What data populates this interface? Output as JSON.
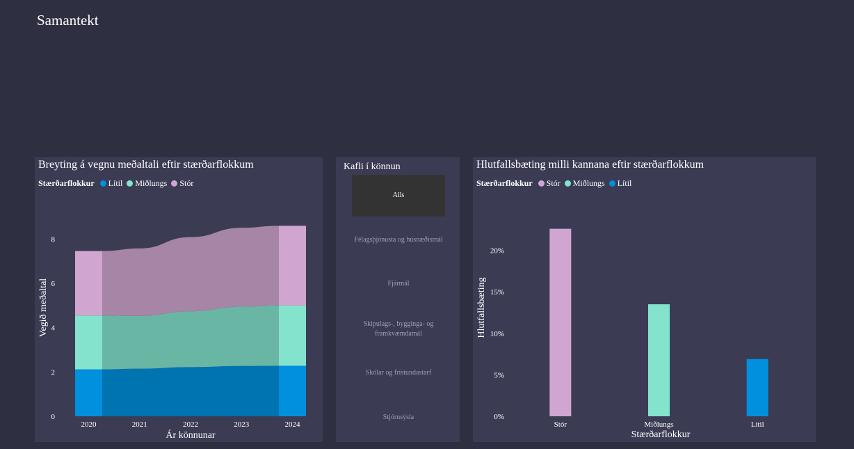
{
  "page": {
    "title": "Samantekt"
  },
  "left_chart": {
    "title": "Breyting á vegnu meðaltali eftir stærðarflokkum",
    "legend_title": "Stærðarflokkur",
    "legend": [
      {
        "label": "Lítil",
        "color": "#0090dd"
      },
      {
        "label": "Miðlungs",
        "color": "#84e3cd"
      },
      {
        "label": "Stór",
        "color": "#d0a6d0"
      }
    ]
  },
  "slicer": {
    "title": "Kafli í könnun",
    "items": [
      {
        "label": "Alls",
        "selected": true
      },
      {
        "label": "Félagsþjónusta og húsnæðismál",
        "selected": false
      },
      {
        "label": "Fjármál",
        "selected": false
      },
      {
        "label": "Skipulags-, bygginga- og framkvæmdamál",
        "selected": false
      },
      {
        "label": "Skólar og frístundastarf",
        "selected": false
      },
      {
        "label": "Stjórnsýsla",
        "selected": false
      }
    ]
  },
  "right_chart": {
    "title": "Hlutfallsbæting milli kannana eftir stærðarflokkum",
    "legend_title": "Stærðarflokkur",
    "legend": [
      {
        "label": "Stór",
        "color": "#d0a6d0"
      },
      {
        "label": "Miðlungs",
        "color": "#84e3cd"
      },
      {
        "label": "Lítil",
        "color": "#0090dd"
      }
    ]
  },
  "chart_data": [
    {
      "type": "area",
      "title": "Breyting á vegnu meðaltali eftir stærðarflokkum",
      "xlabel": "Ár könnunar",
      "ylabel": "Vegið meðaltal",
      "x": [
        "2020",
        "2021",
        "2022",
        "2023",
        "2024"
      ],
      "ylim": [
        0,
        8.8
      ],
      "yticks": [
        "0",
        "2",
        "4",
        "6",
        "8"
      ],
      "stacked": true,
      "series": [
        {
          "name": "Lítil",
          "color": "#0090dd",
          "values": [
            2.12,
            2.15,
            2.22,
            2.27,
            2.28
          ]
        },
        {
          "name": "Miðlungs",
          "color": "#84e3cd",
          "values": [
            2.43,
            2.38,
            2.52,
            2.68,
            2.72
          ]
        },
        {
          "name": "Stór",
          "color": "#d0a6d0",
          "values": [
            2.91,
            3.05,
            3.35,
            3.56,
            3.6
          ]
        }
      ]
    },
    {
      "type": "bar",
      "title": "Hlutfallsbæting milli kannana eftir stærðarflokkum",
      "xlabel": "Stærðarflokkur",
      "ylabel": "Hlutfallsbæting",
      "categories": [
        "Stór",
        "Miðlungs",
        "Lítil"
      ],
      "values": [
        0.226,
        0.135,
        0.069
      ],
      "colors": [
        "#d0a6d0",
        "#84e3cd",
        "#0090dd"
      ],
      "ylim": [
        0,
        0.245
      ],
      "yticks": [
        "0%",
        "5%",
        "10%",
        "15%",
        "20%"
      ]
    }
  ]
}
